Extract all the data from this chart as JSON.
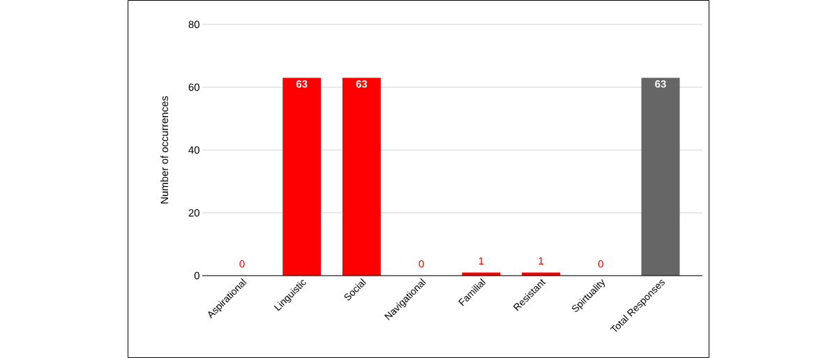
{
  "chart_data": {
    "type": "bar",
    "ylabel": "Number of occurrences",
    "categories": [
      "Aspirational",
      "Linguistic",
      "Social",
      "Navigational",
      "Familial",
      "Resistant",
      "Spirtuality",
      "Total Responses"
    ],
    "values": [
      0,
      63,
      63,
      0,
      1,
      1,
      0,
      63
    ],
    "colors": [
      "#ff0000",
      "#ff0000",
      "#ff0000",
      "#ff0000",
      "#ff0000",
      "#ff0000",
      "#ff0000",
      "#666666"
    ],
    "ylim": [
      0,
      80
    ],
    "yticks": [
      0,
      20,
      40,
      60,
      80
    ],
    "grid": "y",
    "data_labels": true
  }
}
